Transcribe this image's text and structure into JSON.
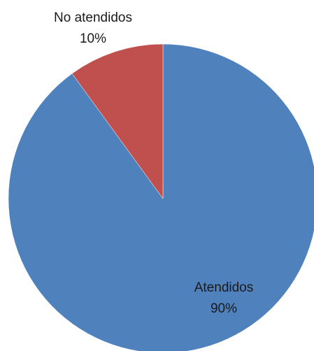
{
  "chart_data": {
    "type": "pie",
    "categories": [
      "Atendidos",
      "No atendidos"
    ],
    "values": [
      90,
      10
    ],
    "value_labels": [
      "90%",
      "10%"
    ],
    "colors": [
      "#4f81bd",
      "#c0504d"
    ],
    "start_angle_deg": 0,
    "direction": "clockwise",
    "legend": "none",
    "title": ""
  }
}
